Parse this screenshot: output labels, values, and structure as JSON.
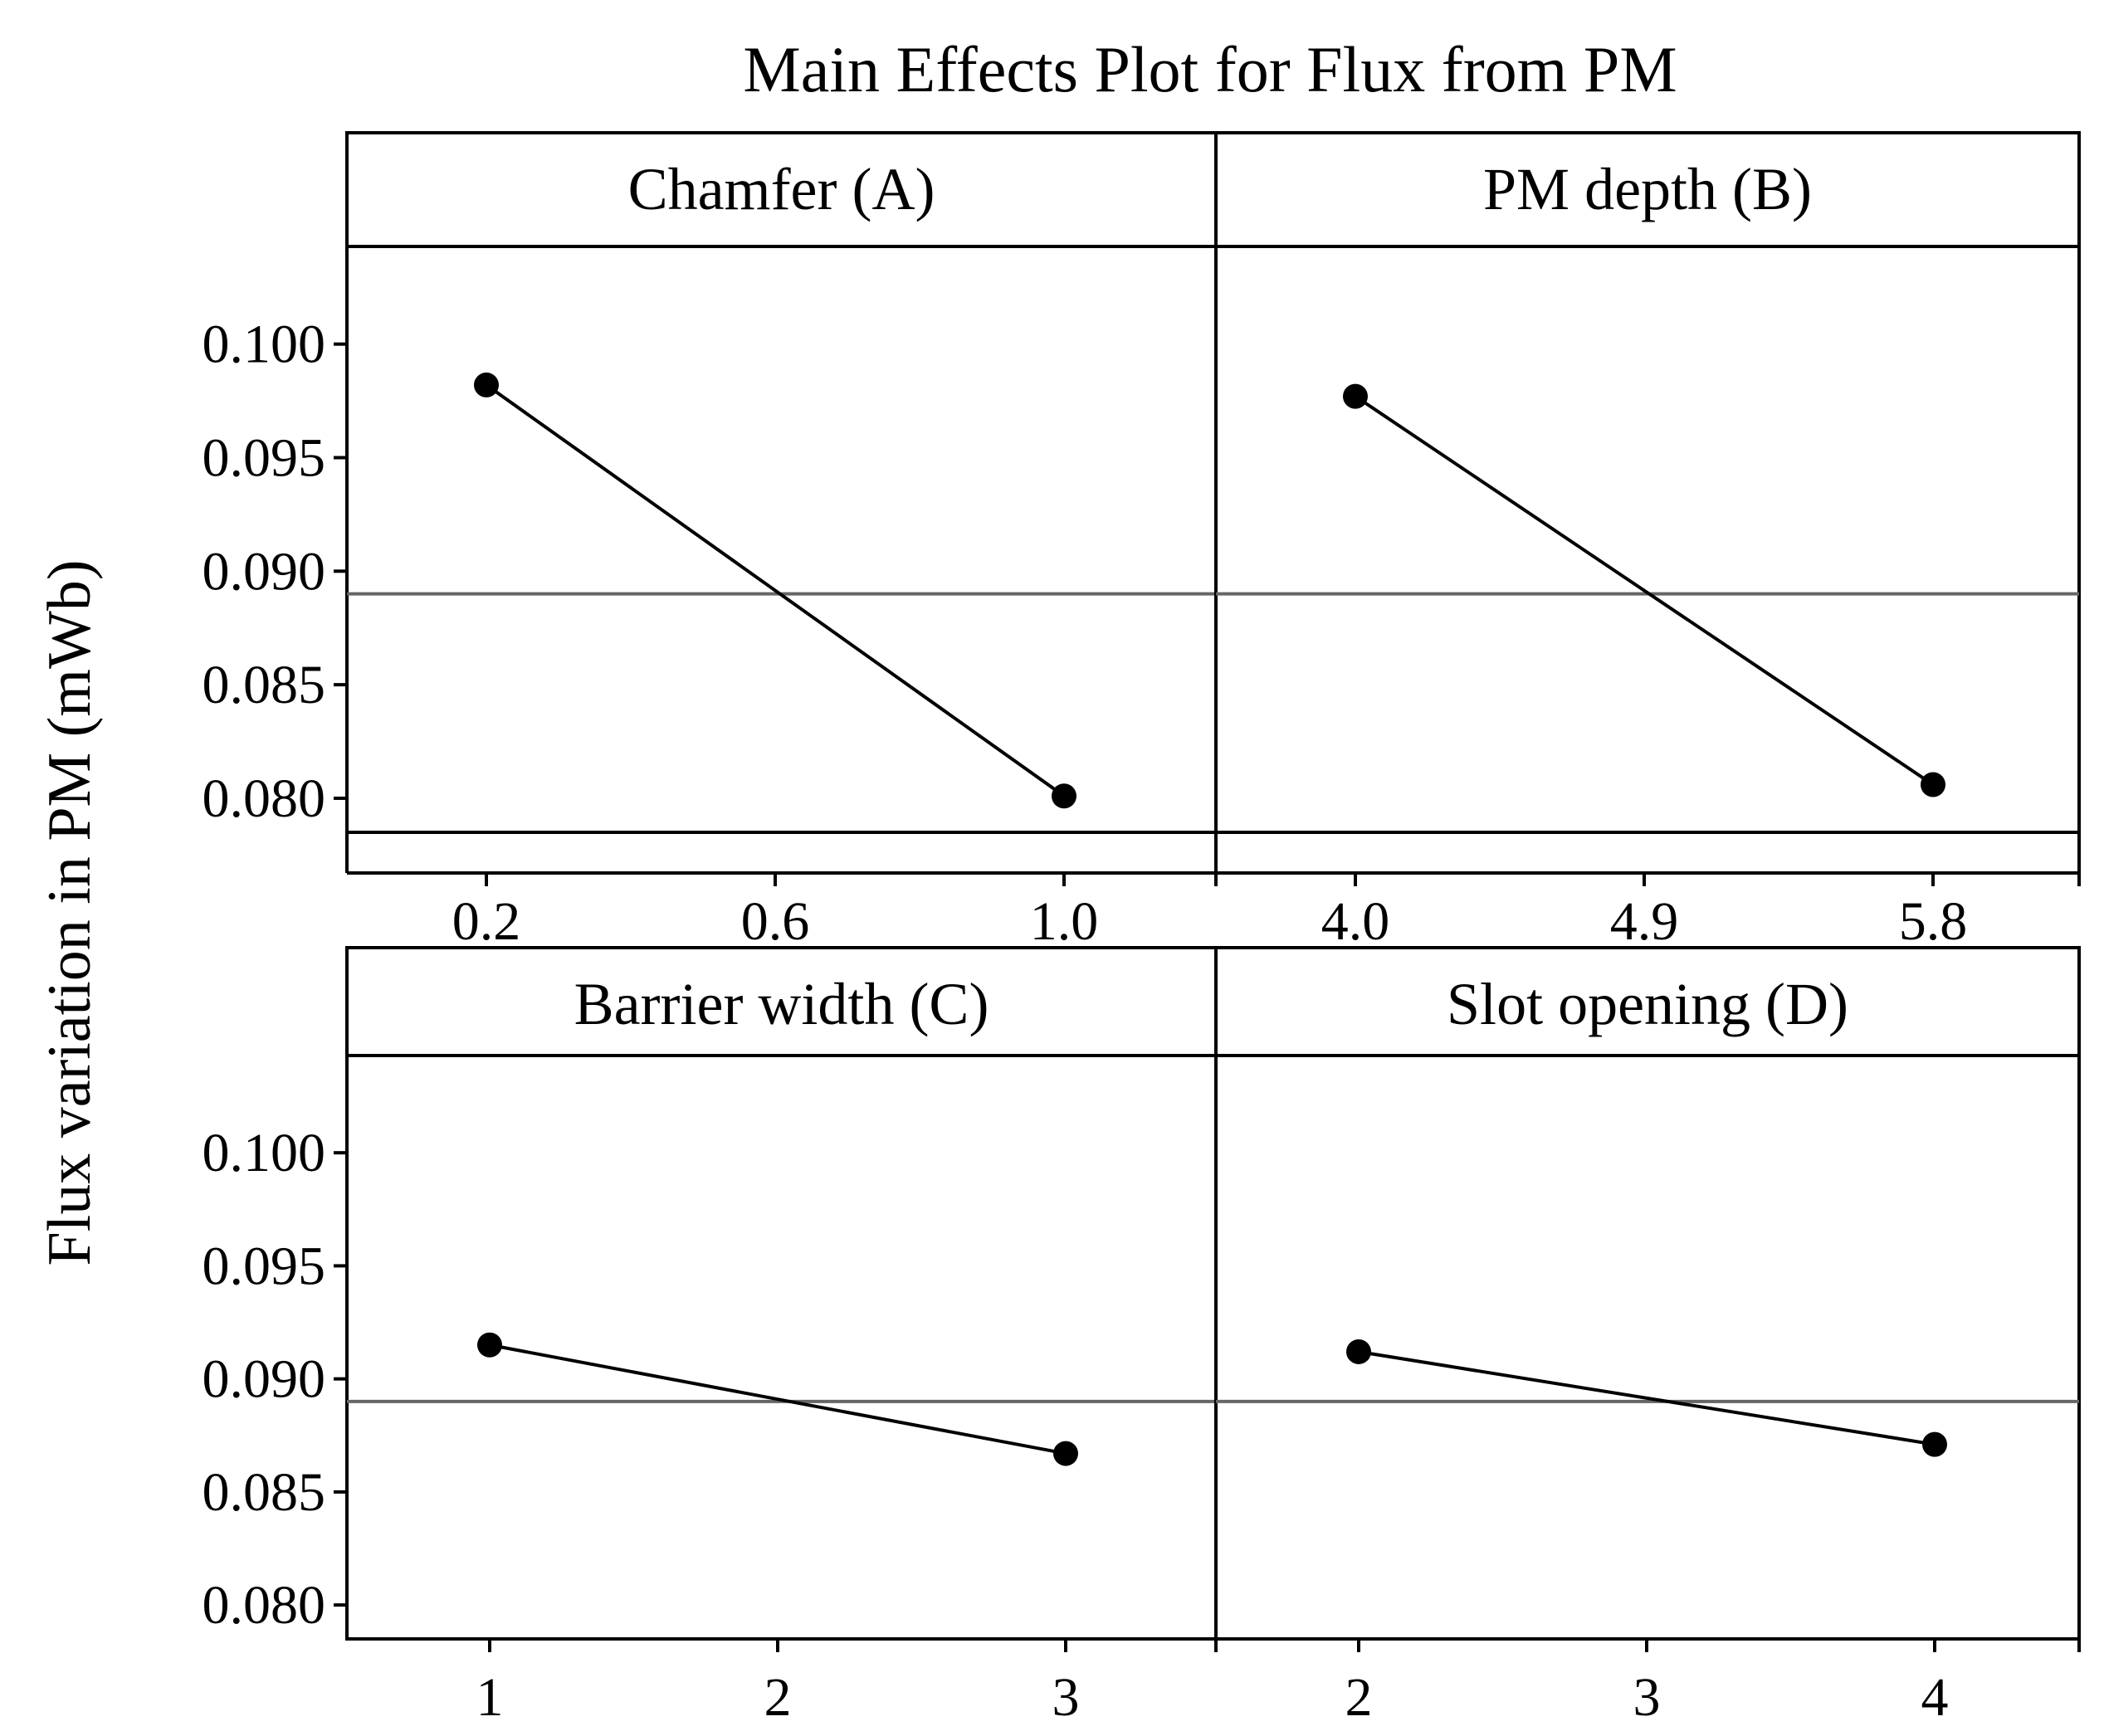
{
  "chart_data": {
    "type": "line",
    "title": "Main Effects Plot for Flux from PM",
    "ylabel": "Flux variation in PM (mWb)",
    "ylim": [
      0.0785,
      0.1043
    ],
    "yticks": [
      "0.080",
      "0.085",
      "0.090",
      "0.095",
      "0.100"
    ],
    "overall_mean": 0.089,
    "panels": [
      {
        "name": "Chamfer (A)",
        "x_ticks": [
          "0.2",
          "0.6",
          "1.0"
        ],
        "x": [
          0.2,
          1.0
        ],
        "values": [
          0.0982,
          0.0801
        ]
      },
      {
        "name": "PM depth (B)",
        "x_ticks": [
          "4.0",
          "4.9",
          "5.8"
        ],
        "x": [
          4.0,
          5.8
        ],
        "values": [
          0.0977,
          0.0806
        ]
      },
      {
        "name": "Barrier width (C)",
        "x_ticks": [
          "1",
          "2",
          "3"
        ],
        "x": [
          1,
          3
        ],
        "values": [
          0.0915,
          0.0867
        ]
      },
      {
        "name": "Slot opening (D)",
        "x_ticks": [
          "2",
          "3",
          "4"
        ],
        "x": [
          2,
          4
        ],
        "values": [
          0.0912,
          0.0871
        ]
      }
    ]
  },
  "colors": {
    "line": "#000000",
    "mean_line": "#666666",
    "frame": "#000000"
  }
}
